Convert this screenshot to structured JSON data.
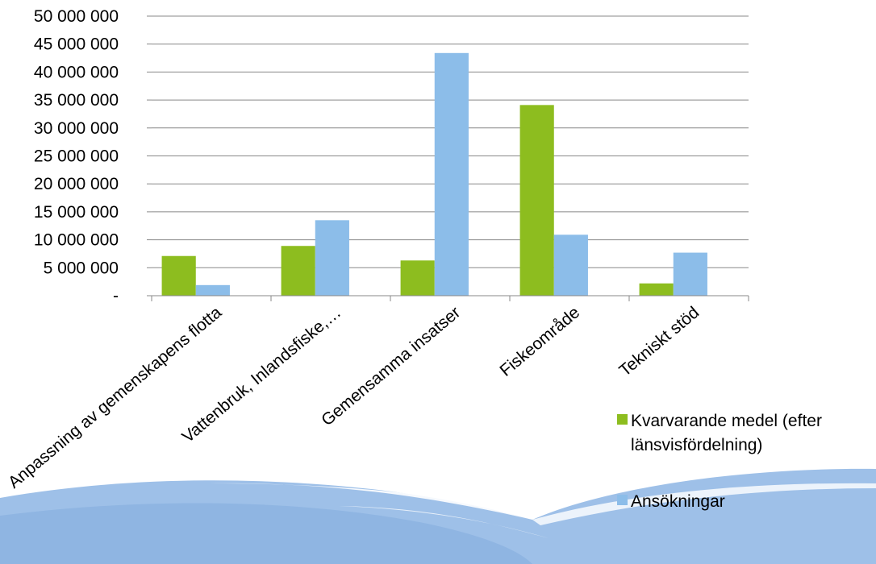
{
  "colors": {
    "series_green": "#8dbd1f",
    "series_blue": "#8cbde9",
    "axis": "#888888",
    "grid": "#888888",
    "footer_blue": "#9ebfe6"
  },
  "chart_data": {
    "type": "bar",
    "categories": [
      "Anpassning av gemenskapens flotta",
      "Vattenbruk, Inlandsfiske,…",
      "Gemensamma insatser",
      "Fiskeområde",
      "Tekniskt stöd"
    ],
    "series": [
      {
        "name": "Kvarvarande medel (efter länsvisfördelning)",
        "legend_line1": "Kvarvarande medel (efter",
        "legend_line2": "länsvisfördelning)",
        "color": "#8dbd1f",
        "values": [
          7100000,
          8900000,
          6300000,
          34100000,
          2200000
        ]
      },
      {
        "name": "Ansökningar",
        "color": "#8cbde9",
        "values": [
          1900000,
          13500000,
          43400000,
          10900000,
          7700000
        ]
      }
    ],
    "ylim": [
      0,
      50000000
    ],
    "yticks": [
      0,
      5000000,
      10000000,
      15000000,
      20000000,
      25000000,
      30000000,
      35000000,
      40000000,
      45000000,
      50000000
    ],
    "ytick_labels": [
      "-",
      "5 000 000",
      "10 000 000",
      "15 000 000",
      "20 000 000",
      "25 000 000",
      "30 000 000",
      "35 000 000",
      "40 000 000",
      "45 000 000",
      "50 000 000"
    ],
    "grid": true,
    "legend_position": "bottom-right"
  }
}
